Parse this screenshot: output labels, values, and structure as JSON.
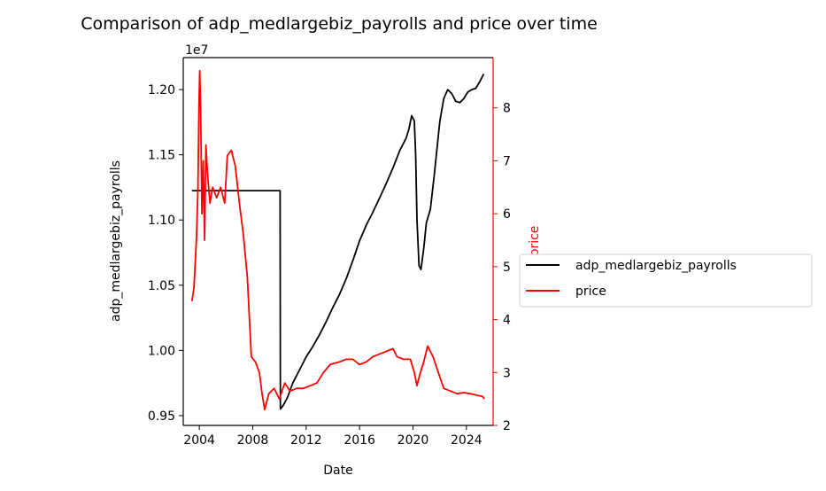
{
  "chart_data": {
    "type": "line",
    "title": "Comparison of adp_medlargebiz_payrolls and price over time",
    "xlabel": "Date",
    "ylabel_left": "adp_medlargebiz_payrolls",
    "ylabel_right": "price",
    "left_offset_label": "1e7",
    "xlim": [
      2002.8,
      2026.0
    ],
    "ylim_left": [
      0.9425,
      1.2245
    ],
    "ylim_right": [
      2.0,
      8.95
    ],
    "x_ticks": [
      2004,
      2008,
      2012,
      2016,
      2020,
      2024
    ],
    "x_tick_labels": [
      "2004",
      "2008",
      "2012",
      "2016",
      "2020",
      "2024"
    ],
    "y_left_ticks": [
      0.95,
      1.0,
      1.05,
      1.1,
      1.15,
      1.2
    ],
    "y_left_tick_labels": [
      "0.95",
      "1.00",
      "1.05",
      "1.10",
      "1.15",
      "1.20"
    ],
    "y_right_ticks": [
      2,
      3,
      4,
      5,
      6,
      7,
      8
    ],
    "y_right_tick_labels": [
      "2",
      "3",
      "4",
      "5",
      "6",
      "7",
      "8"
    ],
    "legend_position": "center-left outside right",
    "grid": false,
    "series": [
      {
        "name": "adp_medlargebiz_payrolls",
        "axis": "left",
        "color": "#000000",
        "points": [
          [
            2003.45,
            1.1225
          ],
          [
            2006.0,
            1.1225
          ],
          [
            2008.0,
            1.1225
          ],
          [
            2010.05,
            1.1225
          ],
          [
            2010.07,
            0.955
          ],
          [
            2010.3,
            0.958
          ],
          [
            2010.6,
            0.964
          ],
          [
            2011.0,
            0.975
          ],
          [
            2011.5,
            0.985
          ],
          [
            2012.0,
            0.995
          ],
          [
            2012.5,
            1.003
          ],
          [
            2013.0,
            1.012
          ],
          [
            2013.5,
            1.022
          ],
          [
            2014.0,
            1.033
          ],
          [
            2014.5,
            1.043
          ],
          [
            2015.0,
            1.055
          ],
          [
            2015.5,
            1.069
          ],
          [
            2016.0,
            1.084
          ],
          [
            2016.5,
            1.096
          ],
          [
            2017.0,
            1.106
          ],
          [
            2017.5,
            1.117
          ],
          [
            2018.0,
            1.128
          ],
          [
            2018.5,
            1.14
          ],
          [
            2019.0,
            1.153
          ],
          [
            2019.5,
            1.163
          ],
          [
            2019.7,
            1.17
          ],
          [
            2019.9,
            1.18
          ],
          [
            2020.1,
            1.176
          ],
          [
            2020.2,
            1.15
          ],
          [
            2020.3,
            1.1
          ],
          [
            2020.45,
            1.065
          ],
          [
            2020.6,
            1.062
          ],
          [
            2020.8,
            1.078
          ],
          [
            2021.0,
            1.098
          ],
          [
            2021.3,
            1.108
          ],
          [
            2021.6,
            1.135
          ],
          [
            2022.0,
            1.175
          ],
          [
            2022.3,
            1.193
          ],
          [
            2022.6,
            1.2
          ],
          [
            2022.9,
            1.197
          ],
          [
            2023.2,
            1.191
          ],
          [
            2023.5,
            1.19
          ],
          [
            2023.8,
            1.193
          ],
          [
            2024.1,
            1.198
          ],
          [
            2024.4,
            1.2
          ],
          [
            2024.7,
            1.201
          ],
          [
            2025.0,
            1.206
          ],
          [
            2025.3,
            1.212
          ]
        ]
      },
      {
        "name": "price",
        "axis": "right",
        "color": "#ff0000",
        "points": [
          [
            2003.45,
            4.35
          ],
          [
            2003.6,
            4.6
          ],
          [
            2003.7,
            5.1
          ],
          [
            2003.8,
            5.6
          ],
          [
            2003.9,
            6.5
          ],
          [
            2003.97,
            8.0
          ],
          [
            2004.03,
            8.7
          ],
          [
            2004.1,
            8.0
          ],
          [
            2004.2,
            6.0
          ],
          [
            2004.3,
            7.0
          ],
          [
            2004.4,
            5.5
          ],
          [
            2004.5,
            7.3
          ],
          [
            2004.6,
            6.8
          ],
          [
            2004.8,
            6.2
          ],
          [
            2005.0,
            6.5
          ],
          [
            2005.3,
            6.3
          ],
          [
            2005.6,
            6.5
          ],
          [
            2005.9,
            6.2
          ],
          [
            2006.1,
            7.1
          ],
          [
            2006.4,
            7.2
          ],
          [
            2006.7,
            6.9
          ],
          [
            2007.0,
            6.2
          ],
          [
            2007.3,
            5.6
          ],
          [
            2007.6,
            4.8
          ],
          [
            2007.9,
            3.3
          ],
          [
            2008.2,
            3.2
          ],
          [
            2008.5,
            3.0
          ],
          [
            2008.7,
            2.6
          ],
          [
            2008.9,
            2.3
          ],
          [
            2009.2,
            2.6
          ],
          [
            2009.6,
            2.7
          ],
          [
            2010.0,
            2.5
          ],
          [
            2010.4,
            2.8
          ],
          [
            2010.8,
            2.65
          ],
          [
            2011.3,
            2.7
          ],
          [
            2011.8,
            2.7
          ],
          [
            2012.3,
            2.75
          ],
          [
            2012.8,
            2.8
          ],
          [
            2013.3,
            3.0
          ],
          [
            2013.8,
            3.15
          ],
          [
            2014.5,
            3.2
          ],
          [
            2015.0,
            3.25
          ],
          [
            2015.5,
            3.25
          ],
          [
            2016.0,
            3.15
          ],
          [
            2016.5,
            3.2
          ],
          [
            2017.0,
            3.3
          ],
          [
            2017.5,
            3.35
          ],
          [
            2018.0,
            3.4
          ],
          [
            2018.5,
            3.45
          ],
          [
            2018.8,
            3.3
          ],
          [
            2019.3,
            3.25
          ],
          [
            2019.8,
            3.25
          ],
          [
            2020.1,
            3.0
          ],
          [
            2020.3,
            2.75
          ],
          [
            2020.5,
            2.95
          ],
          [
            2020.8,
            3.2
          ],
          [
            2021.1,
            3.5
          ],
          [
            2021.5,
            3.3
          ],
          [
            2021.9,
            3.0
          ],
          [
            2022.3,
            2.7
          ],
          [
            2022.8,
            2.65
          ],
          [
            2023.3,
            2.6
          ],
          [
            2023.8,
            2.62
          ],
          [
            2024.3,
            2.6
          ],
          [
            2024.8,
            2.57
          ],
          [
            2025.2,
            2.55
          ],
          [
            2025.35,
            2.5
          ]
        ]
      }
    ]
  }
}
